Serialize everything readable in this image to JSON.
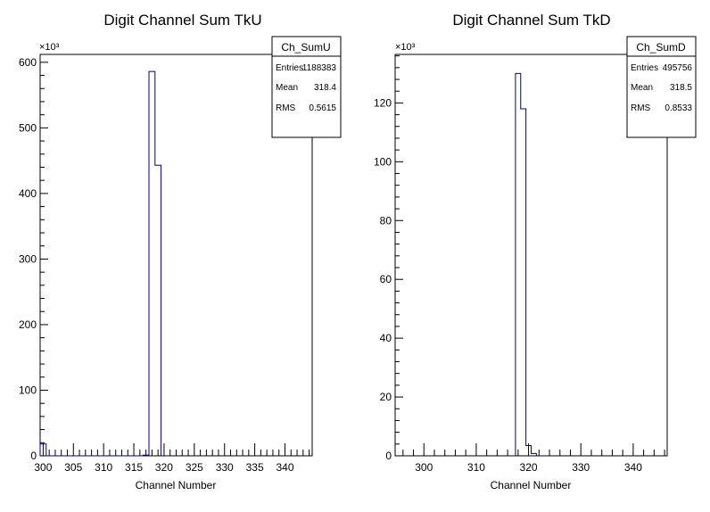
{
  "chart_data": [
    {
      "type": "histogram",
      "title": "Digit Channel Sum TkU",
      "xlabel": "Channel Number",
      "ylabel": "",
      "y_multiplier_label": "×10³",
      "xlim": [
        299.5,
        344.5
      ],
      "ylim": [
        0,
        612
      ],
      "y_unit_scale": 1000,
      "xticks": [
        300,
        305,
        310,
        315,
        320,
        325,
        330,
        335,
        340
      ],
      "yticks": [
        0,
        100,
        200,
        300,
        400,
        500,
        600
      ],
      "bins": [
        {
          "x0": 299.5,
          "x1": 300.5,
          "y": 18
        },
        {
          "x0": 316.5,
          "x1": 317.5,
          "y": 1
        },
        {
          "x0": 317.5,
          "x1": 318.5,
          "y": 586
        },
        {
          "x0": 318.5,
          "x1": 319.5,
          "y": 443
        }
      ],
      "stats": {
        "name": "Ch_SumU",
        "rows": [
          {
            "label": "Entries",
            "value": "1188383"
          },
          {
            "label": "Mean",
            "value": "318.4"
          },
          {
            "label": "RMS",
            "value": "0.5615"
          }
        ]
      },
      "colors": {
        "line": "#000080",
        "frame": "#000000"
      }
    },
    {
      "type": "histogram",
      "title": "Digit Channel Sum TkD",
      "xlabel": "Channel Number",
      "ylabel": "",
      "y_multiplier_label": "×10³",
      "xlim": [
        294.5,
        346.5
      ],
      "ylim": [
        0,
        136.5
      ],
      "y_unit_scale": 1000,
      "xticks": [
        300,
        310,
        320,
        330,
        340
      ],
      "yticks": [
        0,
        20,
        40,
        60,
        80,
        100,
        120
      ],
      "bins": [
        {
          "x0": 317.5,
          "x1": 318.5,
          "y": 130
        },
        {
          "x0": 318.5,
          "x1": 319.5,
          "y": 118
        },
        {
          "x0": 319.5,
          "x1": 320.5,
          "y": 3.5
        },
        {
          "x0": 320.5,
          "x1": 321.5,
          "y": 0.8
        }
      ],
      "stats": {
        "name": "Ch_SumD",
        "rows": [
          {
            "label": "Entries",
            "value": "495756"
          },
          {
            "label": "Mean",
            "value": "318.5"
          },
          {
            "label": "RMS",
            "value": "0.8533"
          }
        ]
      },
      "colors": {
        "line": "#000080",
        "frame": "#000000"
      }
    }
  ]
}
